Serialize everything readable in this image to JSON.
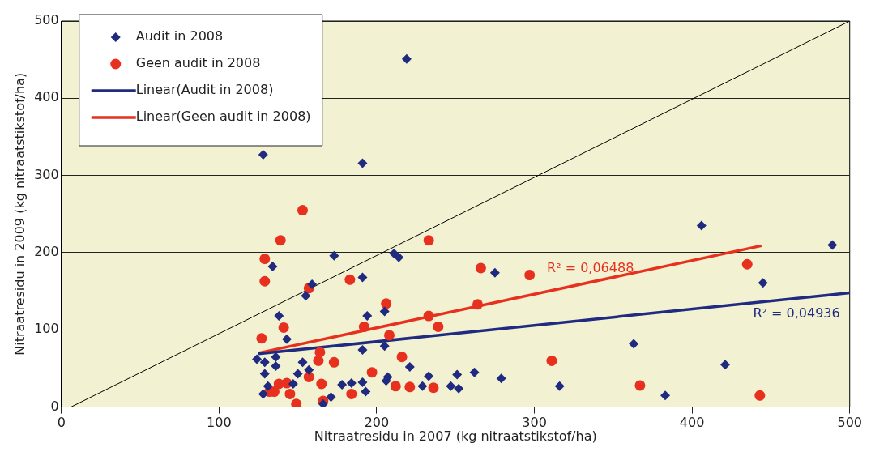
{
  "chart_data": {
    "type": "scatter",
    "xlabel": "Nitraatresidu in 2007 (kg nitraatstikstof/ha)",
    "ylabel": "Nitraatresidu in 2009 (kg nitraatstikstof/ha)",
    "xlim": [
      0,
      500
    ],
    "ylim": [
      0,
      500
    ],
    "xticks": [
      0,
      100,
      200,
      300,
      400,
      500
    ],
    "yticks": [
      0,
      100,
      200,
      300,
      400,
      500
    ],
    "grid": "y",
    "legend": "top left",
    "series": [
      {
        "name": "Audit in 2008",
        "type": "scatter",
        "marker": "diamond",
        "color": "#1f2a80",
        "x": [
          219,
          128,
          191,
          173,
          134,
          211,
          214,
          191,
          159,
          155,
          138,
          194,
          205,
          406,
          489,
          445,
          275,
          363,
          421,
          262,
          279,
          316,
          383,
          143,
          191,
          205,
          124,
          129,
          136,
          136,
          153,
          157,
          129,
          150,
          221,
          207,
          206,
          131,
          147,
          178,
          184,
          191,
          128,
          193,
          171,
          166,
          229,
          233,
          251,
          247,
          252
        ],
        "values": [
          451,
          327,
          316,
          196,
          182,
          199,
          194,
          168,
          159,
          144,
          118,
          118,
          124,
          235,
          210,
          161,
          174,
          82,
          55,
          45,
          37,
          27,
          15,
          88,
          74,
          79,
          62,
          58,
          65,
          53,
          58,
          48,
          43,
          43,
          52,
          39,
          34,
          27,
          30,
          29,
          31,
          32,
          17,
          20,
          13,
          4,
          27,
          40,
          42,
          27,
          24
        ]
      },
      {
        "name": "Geen audit in 2008",
        "type": "scatter",
        "marker": "circle",
        "color": "#e8301e",
        "x": [
          153,
          139,
          233,
          129,
          129,
          183,
          157,
          206,
          266,
          297,
          435,
          264,
          311,
          367,
          443,
          141,
          192,
          208,
          127,
          164,
          216,
          163,
          173,
          157,
          197,
          165,
          143,
          138,
          135,
          132,
          145,
          166,
          149,
          184,
          212,
          233,
          239,
          221,
          236
        ],
        "values": [
          255,
          216,
          216,
          192,
          163,
          165,
          154,
          134,
          180,
          171,
          185,
          133,
          60,
          28,
          15,
          103,
          104,
          93,
          89,
          71,
          65,
          60,
          58,
          39,
          45,
          30,
          31,
          30,
          20,
          20,
          17,
          8,
          4,
          17,
          27,
          118,
          104,
          26,
          25
        ]
      },
      {
        "name": "Linear(Audit in 2008)",
        "type": "line",
        "marker": "none",
        "color": "#1f2a80",
        "x": [
          125,
          500
        ],
        "values": [
          69,
          148
        ]
      },
      {
        "name": "Linear(Geen audit in 2008)",
        "type": "line",
        "marker": "none",
        "color": "#e8301e",
        "x": [
          125,
          444
        ],
        "values": [
          70,
          209
        ]
      },
      {
        "type": "line",
        "marker": "none",
        "color": "#000000",
        "x": [
          6,
          500
        ],
        "values": [
          0,
          500
        ]
      }
    ],
    "annotations": [
      "R² = 0,04936",
      "R² = 0,06488"
    ]
  }
}
